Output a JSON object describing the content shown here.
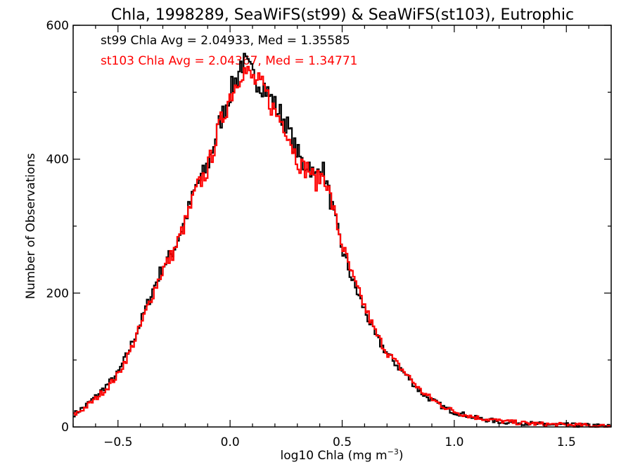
{
  "chart_data": {
    "type": "line",
    "title": "Chla, 1998289, SeaWiFS(st99) & SeaWiFS(st103), Eutrophic",
    "xlabel_main": "log10 Chla (mg m",
    "xlabel_exp": "−3",
    "xlabel_close": ")",
    "ylabel": "Number of Observations",
    "xlim": [
      -0.7,
      1.7
    ],
    "ylim": [
      0,
      600
    ],
    "xticks": [
      -0.5,
      0.0,
      0.5,
      1.0,
      1.5
    ],
    "xtick_labels": [
      "−0.5",
      "0.0",
      "0.5",
      "1.0",
      "1.5"
    ],
    "yticks": [
      0,
      200,
      400,
      600
    ],
    "ytick_labels": [
      "0",
      "200",
      "400",
      "600"
    ],
    "annotations": [
      {
        "text": "st99 Chla Avg = 2.04933, Med = 1.35585",
        "color": "#000000"
      },
      {
        "text": "st103 Chla Avg = 2.04367, Med = 1.34771",
        "color": "#ff0000"
      }
    ],
    "series": [
      {
        "color": "#000000",
        "x": [
          -0.7,
          -0.65,
          -0.6,
          -0.55,
          -0.5,
          -0.45,
          -0.4,
          -0.35,
          -0.3,
          -0.25,
          -0.2,
          -0.15,
          -0.1,
          -0.05,
          0.0,
          0.03,
          0.05,
          0.07,
          0.1,
          0.15,
          0.2,
          0.25,
          0.28,
          0.3,
          0.33,
          0.35,
          0.38,
          0.4,
          0.42,
          0.45,
          0.5,
          0.55,
          0.6,
          0.65,
          0.7,
          0.75,
          0.8,
          0.85,
          0.9,
          0.95,
          1.0,
          1.05,
          1.1,
          1.2,
          1.3,
          1.4,
          1.5,
          1.6,
          1.7
        ],
        "values": [
          18,
          30,
          45,
          62,
          80,
          115,
          155,
          200,
          240,
          265,
          310,
          360,
          390,
          450,
          500,
          520,
          545,
          540,
          525,
          510,
          480,
          455,
          425,
          410,
          390,
          395,
          370,
          395,
          380,
          335,
          265,
          215,
          175,
          135,
          110,
          90,
          72,
          52,
          40,
          30,
          22,
          18,
          13,
          8,
          6,
          4,
          3,
          2,
          1
        ]
      },
      {
        "color": "#ff0000",
        "x": [
          -0.7,
          -0.65,
          -0.6,
          -0.55,
          -0.5,
          -0.45,
          -0.4,
          -0.35,
          -0.3,
          -0.25,
          -0.2,
          -0.15,
          -0.1,
          -0.05,
          0.0,
          0.03,
          0.05,
          0.07,
          0.1,
          0.15,
          0.2,
          0.25,
          0.28,
          0.3,
          0.33,
          0.35,
          0.38,
          0.4,
          0.42,
          0.45,
          0.5,
          0.55,
          0.6,
          0.65,
          0.7,
          0.75,
          0.8,
          0.85,
          0.9,
          0.95,
          1.0,
          1.05,
          1.1,
          1.2,
          1.3,
          1.4,
          1.5,
          1.6,
          1.7
        ],
        "values": [
          17,
          28,
          42,
          58,
          78,
          110,
          150,
          195,
          235,
          262,
          305,
          355,
          385,
          445,
          495,
          515,
          535,
          530,
          520,
          505,
          470,
          448,
          418,
          400,
          385,
          388,
          365,
          372,
          378,
          340,
          272,
          220,
          180,
          140,
          112,
          92,
          74,
          54,
          42,
          31,
          23,
          18,
          14,
          9,
          6,
          4,
          3,
          2,
          1
        ]
      }
    ]
  }
}
